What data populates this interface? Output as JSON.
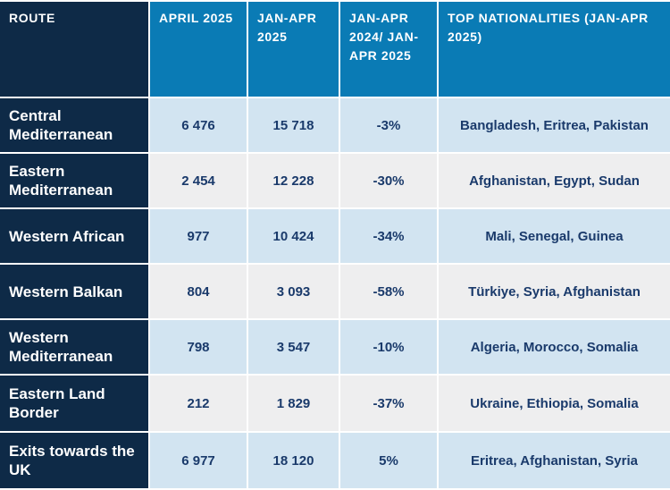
{
  "chart_data": {
    "type": "table",
    "columns": [
      "ROUTE",
      "APRIL 2025",
      "JAN-APR 2025",
      "JAN-APR 2024/ JAN-APR 2025",
      "TOP NATIONALITIES (JAN-APR 2025)"
    ],
    "rows": [
      {
        "route": "Central Mediterranean",
        "april_2025": "6 476",
        "jan_apr_2025": "15 718",
        "change": "-3%",
        "top_nationalities": "Bangladesh, Eritrea, Pakistan"
      },
      {
        "route": "Eastern Mediterranean",
        "april_2025": "2 454",
        "jan_apr_2025": "12 228",
        "change": "-30%",
        "top_nationalities": "Afghanistan, Egypt, Sudan"
      },
      {
        "route": "Western African",
        "april_2025": "977",
        "jan_apr_2025": "10 424",
        "change": "-34%",
        "top_nationalities": "Mali, Senegal, Guinea"
      },
      {
        "route": "Western Balkan",
        "april_2025": "804",
        "jan_apr_2025": "3 093",
        "change": "-58%",
        "top_nationalities": "Türkiye, Syria, Afghanistan"
      },
      {
        "route": "Western Mediterranean",
        "april_2025": "798",
        "jan_apr_2025": "3 547",
        "change": "-10%",
        "top_nationalities": "Algeria, Morocco, Somalia"
      },
      {
        "route": "Eastern Land Border",
        "april_2025": "212",
        "jan_apr_2025": "1 829",
        "change": "-37%",
        "top_nationalities": "Ukraine, Ethiopia, Somalia"
      },
      {
        "route": "Exits towards the UK",
        "april_2025": "6 977",
        "jan_apr_2025": "18 120",
        "change": "5%",
        "top_nationalities": "Eritrea, Afghanistan, Syria"
      }
    ]
  },
  "colors": {
    "header_dark": "#0e2a47",
    "header_blue": "#0a7bb5",
    "row_light_blue": "#d2e4f1",
    "row_light_grey": "#eeeeef",
    "cell_text": "#1a3a6b"
  }
}
